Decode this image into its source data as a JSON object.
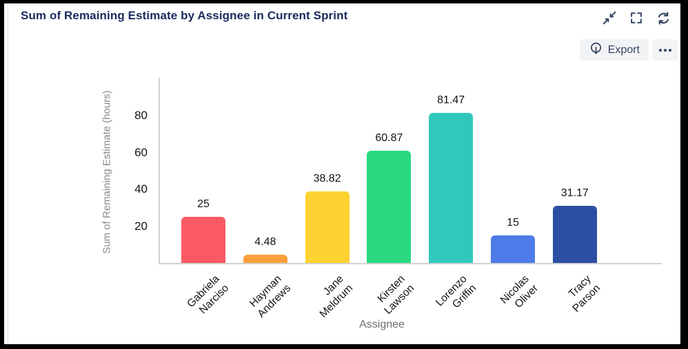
{
  "header": {
    "title": "Sum of Remaining Estimate by Assignee in Current Sprint"
  },
  "toolbar": {
    "export_label": "Export"
  },
  "chart_data": {
    "type": "bar",
    "title": "Sum of Remaining Estimate by Assignee in Current Sprint",
    "categories": [
      "Gabriela Narciso",
      "Hayman Andrews",
      "Jane Meldrum",
      "Kirsten Lawson",
      "Lorenzo Griffin",
      "Nicolas Oliver",
      "Tracy Parson"
    ],
    "values": [
      25,
      4.48,
      38.82,
      60.87,
      81.47,
      15,
      31.17
    ],
    "data_labels": [
      "25",
      "4.48",
      "38.82",
      "60.87",
      "81.47",
      "15",
      "31.17"
    ],
    "bar_colors": [
      "#fb5a64",
      "#faa03d",
      "#fdd231",
      "#29da81",
      "#2fc9bc",
      "#4e7de9",
      "#2c4fa3"
    ],
    "xlabel": "Assignee",
    "ylabel": "Sum of Remaining Estimate (hours)",
    "yticks": [
      20,
      40,
      60,
      80
    ],
    "ylim": [
      0,
      100
    ],
    "grid": false,
    "legend": false
  },
  "colors": {
    "title_navy": "#1b2a5e",
    "icon_navy": "#344563",
    "axis_gray": "#d2d2d2",
    "button_bg": "#f2f3f5"
  }
}
